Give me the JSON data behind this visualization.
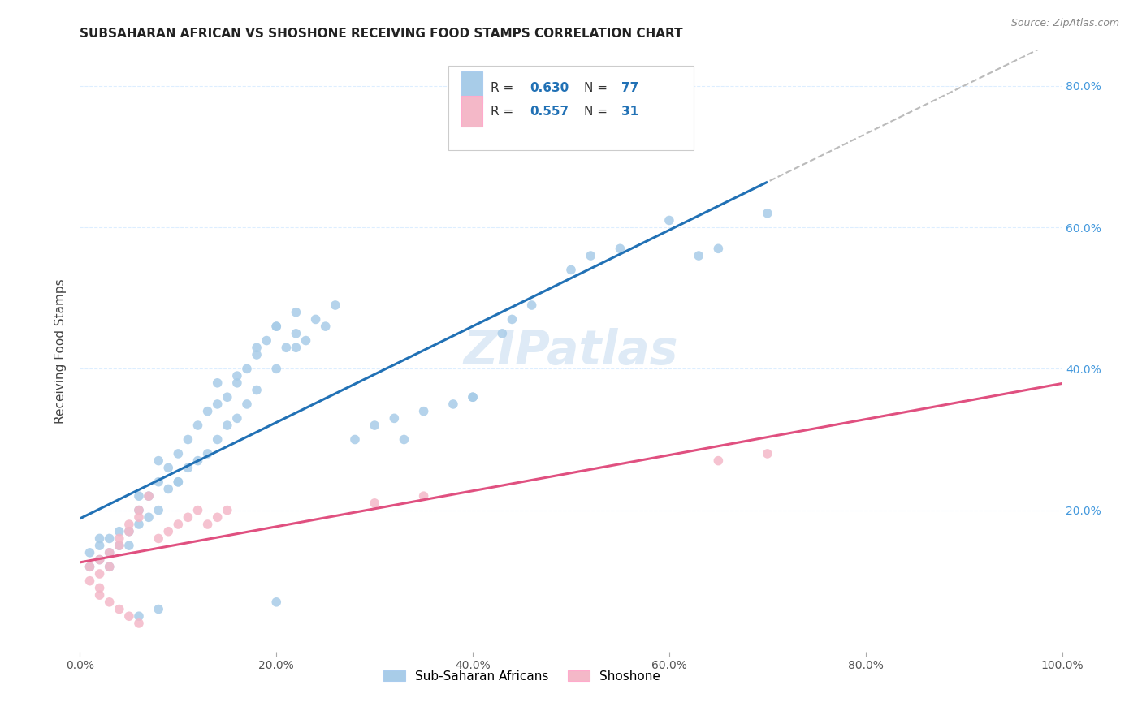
{
  "title": "SUBSAHARAN AFRICAN VS SHOSHONE RECEIVING FOOD STAMPS CORRELATION CHART",
  "source": "Source: ZipAtlas.com",
  "ylabel": "Receiving Food Stamps",
  "xlim": [
    0,
    1.0
  ],
  "ylim": [
    0,
    0.85
  ],
  "blue_R": 0.63,
  "blue_N": 77,
  "pink_R": 0.557,
  "pink_N": 31,
  "blue_scatter_color": "#a8cce8",
  "pink_scatter_color": "#f4b8c8",
  "blue_line_color": "#2171b5",
  "pink_line_color": "#e05080",
  "dash_line_color": "#bbbbbb",
  "watermark": "ZIPatlas",
  "legend_label_blue": "Sub-Saharan Africans",
  "legend_label_pink": "Shoshone",
  "title_fontsize": 11,
  "source_fontsize": 9,
  "axis_tick_color": "#555555",
  "right_tick_color": "#4499dd",
  "ylabel_color": "#444444",
  "grid_color": "#ddeeff",
  "watermark_color": "#c8ddf0",
  "blue_scatter_x": [
    0.01,
    0.01,
    0.02,
    0.02,
    0.02,
    0.03,
    0.03,
    0.03,
    0.04,
    0.04,
    0.05,
    0.05,
    0.06,
    0.06,
    0.06,
    0.07,
    0.07,
    0.08,
    0.08,
    0.08,
    0.09,
    0.09,
    0.1,
    0.1,
    0.11,
    0.11,
    0.12,
    0.12,
    0.13,
    0.13,
    0.14,
    0.14,
    0.15,
    0.15,
    0.16,
    0.16,
    0.17,
    0.17,
    0.18,
    0.18,
    0.19,
    0.2,
    0.2,
    0.21,
    0.22,
    0.22,
    0.23,
    0.24,
    0.25,
    0.26,
    0.28,
    0.3,
    0.32,
    0.35,
    0.38,
    0.4,
    0.43,
    0.44,
    0.46,
    0.5,
    0.52,
    0.55,
    0.6,
    0.63,
    0.65,
    0.7,
    0.14,
    0.16,
    0.18,
    0.2,
    0.22,
    0.06,
    0.08,
    0.1,
    0.33,
    0.4,
    0.2
  ],
  "blue_scatter_y": [
    0.12,
    0.14,
    0.13,
    0.15,
    0.16,
    0.12,
    0.14,
    0.16,
    0.15,
    0.17,
    0.15,
    0.17,
    0.18,
    0.2,
    0.22,
    0.19,
    0.22,
    0.2,
    0.24,
    0.27,
    0.23,
    0.26,
    0.24,
    0.28,
    0.26,
    0.3,
    0.27,
    0.32,
    0.28,
    0.34,
    0.3,
    0.35,
    0.32,
    0.36,
    0.33,
    0.38,
    0.35,
    0.4,
    0.37,
    0.42,
    0.44,
    0.4,
    0.46,
    0.43,
    0.45,
    0.48,
    0.44,
    0.47,
    0.46,
    0.49,
    0.3,
    0.32,
    0.33,
    0.34,
    0.35,
    0.36,
    0.45,
    0.47,
    0.49,
    0.54,
    0.56,
    0.57,
    0.61,
    0.56,
    0.57,
    0.62,
    0.38,
    0.39,
    0.43,
    0.46,
    0.43,
    0.05,
    0.06,
    0.24,
    0.3,
    0.36,
    0.07
  ],
  "pink_scatter_x": [
    0.01,
    0.01,
    0.02,
    0.02,
    0.02,
    0.03,
    0.03,
    0.04,
    0.04,
    0.05,
    0.05,
    0.06,
    0.06,
    0.07,
    0.08,
    0.09,
    0.1,
    0.11,
    0.12,
    0.13,
    0.14,
    0.15,
    0.3,
    0.35,
    0.65,
    0.7,
    0.02,
    0.03,
    0.04,
    0.05,
    0.06
  ],
  "pink_scatter_y": [
    0.12,
    0.1,
    0.13,
    0.11,
    0.09,
    0.14,
    0.12,
    0.15,
    0.16,
    0.17,
    0.18,
    0.19,
    0.2,
    0.22,
    0.16,
    0.17,
    0.18,
    0.19,
    0.2,
    0.18,
    0.19,
    0.2,
    0.21,
    0.22,
    0.27,
    0.28,
    0.08,
    0.07,
    0.06,
    0.05,
    0.04
  ]
}
